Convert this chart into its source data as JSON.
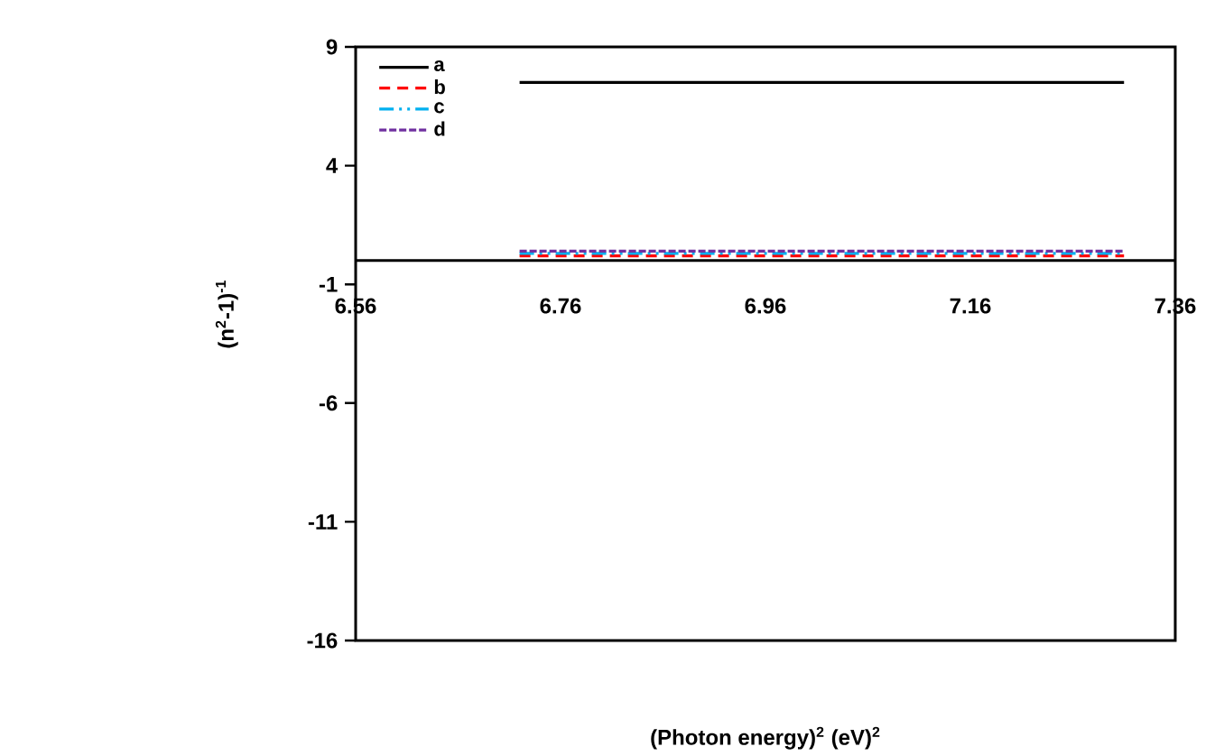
{
  "chart_data": {
    "type": "line",
    "xlabel": "(Photon energy)$^{2}$ (eV)$^{2}$",
    "ylabel": "(n$^{2}$-1)$^{-1}$",
    "xlim": [
      6.56,
      7.36
    ],
    "xticks": [
      6.56,
      6.76,
      6.96,
      7.16,
      7.36
    ],
    "ylim": [
      -16,
      9
    ],
    "yticks": [
      -16,
      -11,
      -6,
      -1,
      4,
      9
    ],
    "legend": "top left",
    "grid": false,
    "ref_lines": [
      {
        "axis": "y",
        "value": 0,
        "color": "#000000"
      }
    ],
    "x": [
      6.72,
      7.31
    ],
    "series": [
      {
        "name": "a",
        "color": "#000000",
        "line_style": "solid",
        "values": [
          7.5,
          7.5
        ]
      },
      {
        "name": "b",
        "color": "#ff0000",
        "line_style": "dashed",
        "values": [
          0.2,
          0.2
        ]
      },
      {
        "name": "c",
        "color": "#00b0f0",
        "line_style": "dashdotdot",
        "values": [
          0.3,
          0.3
        ]
      },
      {
        "name": "d",
        "color": "#7030a0",
        "line_style": "densely dashed",
        "values": [
          0.4,
          0.4
        ]
      }
    ]
  }
}
